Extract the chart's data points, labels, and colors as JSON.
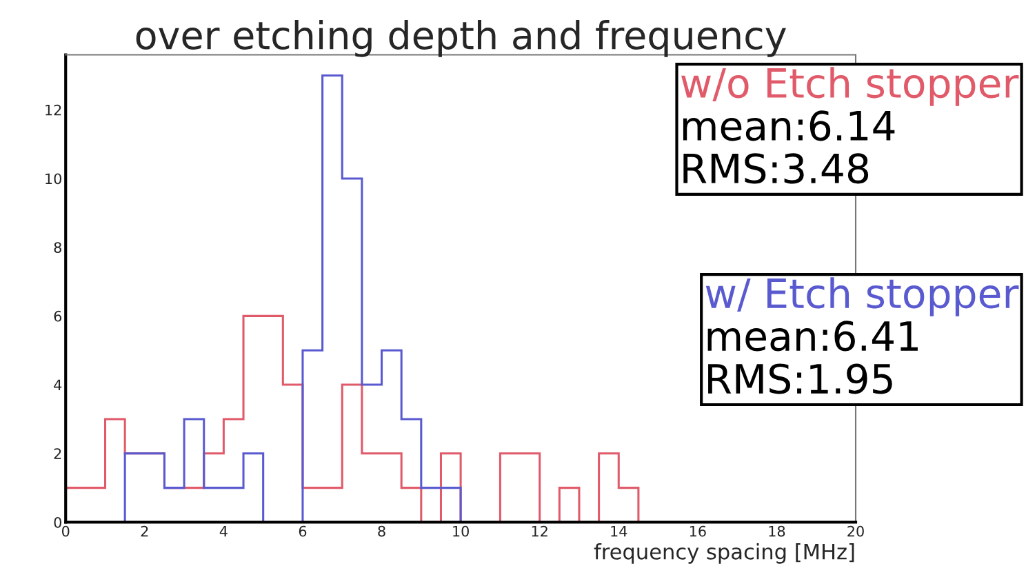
{
  "chart_data": {
    "type": "histogram",
    "title": "over etching depth and frequency",
    "xlabel": "frequency spacing [MHz]",
    "bins": [
      0,
      0.5,
      1,
      1.5,
      2,
      2.5,
      3,
      3.5,
      4,
      4.5,
      5,
      5.5,
      6,
      6.5,
      7,
      7.5,
      8,
      8.5,
      9,
      9.5,
      10,
      10.5,
      11,
      11.5,
      12,
      12.5,
      13,
      13.5,
      14,
      14.5,
      15,
      15.5,
      16,
      16.5,
      17,
      17.5,
      18,
      18.5,
      19,
      19.5,
      20
    ],
    "series": [
      {
        "name": "w/o Etch stopper",
        "color": "#e05a6a",
        "values": [
          1,
          1,
          3,
          2,
          2,
          1,
          1,
          2,
          3,
          6,
          6,
          4,
          1,
          1,
          4,
          2,
          2,
          1,
          0,
          2,
          0,
          0,
          2,
          2,
          0,
          1,
          0,
          2,
          1,
          0,
          0,
          0,
          0,
          0,
          0,
          0,
          0,
          0,
          0,
          0
        ]
      },
      {
        "name": "w/ Etch stopper",
        "color": "#5a5ad0",
        "values": [
          0,
          0,
          0,
          2,
          2,
          1,
          3,
          1,
          1,
          2,
          0,
          0,
          5,
          13,
          10,
          4,
          5,
          3,
          1,
          1,
          0,
          0,
          0,
          0,
          0,
          0,
          0,
          0,
          0,
          0,
          0,
          0,
          0,
          0,
          0,
          0,
          0,
          0,
          0,
          0
        ]
      }
    ],
    "annotations": [
      "mean:6.14",
      "RMS:3.48",
      "mean:6.41",
      "RMS:1.95"
    ],
    "xlim": [
      0,
      20
    ],
    "xticks": [
      0,
      2,
      4,
      6,
      8,
      10,
      12,
      14,
      16,
      18,
      20
    ],
    "ylim": [
      0,
      13.6
    ],
    "yticks": [
      0,
      2,
      4,
      6,
      8,
      10,
      12
    ],
    "legend": "top right",
    "grid": false
  }
}
